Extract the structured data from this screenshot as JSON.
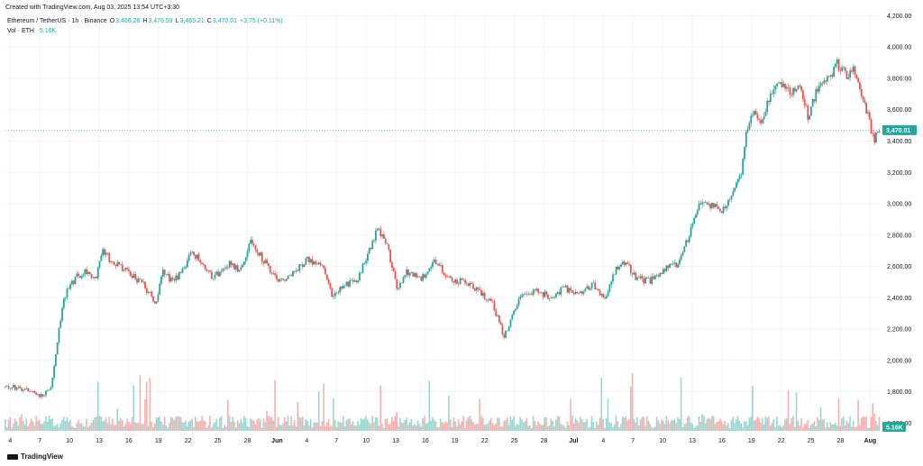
{
  "header": {
    "created_text": "Created with TradingView.com, Aug 03, 2025 13:54 UTC+3:30",
    "symbol_text": "Ethereum / TetherUS · 1h · Binance",
    "ohlc": [
      {
        "key": "O",
        "value": "3,466.26"
      },
      {
        "key": "H",
        "value": "3,476.59"
      },
      {
        "key": "L",
        "value": "3,465.21"
      },
      {
        "key": "C",
        "value": "3,470.01"
      }
    ],
    "change_text": "+3.75 (+0.11%)",
    "vol_label": "Vol · ETH",
    "vol_value": "5.16K"
  },
  "footer": {
    "logo_text": "TradingView"
  },
  "colors": {
    "up": "#26a69a",
    "down": "#ef5350",
    "grid": "#f0f3fa",
    "axis_text": "#131722"
  },
  "chart_data": {
    "type": "candlestick",
    "price_axis": {
      "ticks": [
        1600,
        1800,
        2000,
        2200,
        2400,
        2600,
        2800,
        3000,
        3200,
        3400,
        3600,
        3800,
        4000,
        4200
      ],
      "tick_labels": [
        "1,600.00",
        "1,800.00",
        "2,000.00",
        "2,200.00",
        "2,400.00",
        "2,600.00",
        "2,800.00",
        "3,000.00",
        "3,200.00",
        "3,400.00",
        "3,600.00",
        "3,800.00",
        "4,000.00",
        "4,200.00"
      ],
      "range": [
        1550,
        4220
      ]
    },
    "time_axis": {
      "labels": [
        "4",
        "7",
        "10",
        "13",
        "16",
        "19",
        "22",
        "25",
        "28",
        "Jun",
        "4",
        "7",
        "10",
        "13",
        "16",
        "19",
        "22",
        "25",
        "28",
        "Jul",
        "4",
        "7",
        "10",
        "13",
        "16",
        "19",
        "22",
        "25",
        "28",
        "Aug"
      ],
      "bold_labels": [
        "Jun",
        "Jul",
        "Aug"
      ],
      "range_days": [
        3.5,
        95
      ]
    },
    "last_price": 3470.01,
    "last_price_label": "3,470.01",
    "last_volume_label": "5.16K",
    "trend": [
      {
        "day": 3.5,
        "price": 1830
      },
      {
        "day": 5,
        "price": 1825
      },
      {
        "day": 6.5,
        "price": 1790
      },
      {
        "day": 7.5,
        "price": 1770
      },
      {
        "day": 8.3,
        "price": 1840
      },
      {
        "day": 9,
        "price": 2150
      },
      {
        "day": 9.6,
        "price": 2400
      },
      {
        "day": 10.3,
        "price": 2480
      },
      {
        "day": 11,
        "price": 2540
      },
      {
        "day": 12,
        "price": 2570
      },
      {
        "day": 13,
        "price": 2510
      },
      {
        "day": 13.6,
        "price": 2710
      },
      {
        "day": 14.5,
        "price": 2640
      },
      {
        "day": 15.5,
        "price": 2600
      },
      {
        "day": 16.5,
        "price": 2560
      },
      {
        "day": 18,
        "price": 2480
      },
      {
        "day": 19.2,
        "price": 2360
      },
      {
        "day": 20,
        "price": 2570
      },
      {
        "day": 21,
        "price": 2500
      },
      {
        "day": 22,
        "price": 2560
      },
      {
        "day": 23,
        "price": 2700
      },
      {
        "day": 24,
        "price": 2620
      },
      {
        "day": 25,
        "price": 2540
      },
      {
        "day": 26,
        "price": 2560
      },
      {
        "day": 27,
        "price": 2620
      },
      {
        "day": 28,
        "price": 2580
      },
      {
        "day": 29.2,
        "price": 2760
      },
      {
        "day": 30.5,
        "price": 2640
      },
      {
        "day": 32,
        "price": 2500
      },
      {
        "day": 33.5,
        "price": 2560
      },
      {
        "day": 35,
        "price": 2640
      },
      {
        "day": 36.5,
        "price": 2620
      },
      {
        "day": 37.7,
        "price": 2420
      },
      {
        "day": 39,
        "price": 2480
      },
      {
        "day": 40.5,
        "price": 2530
      },
      {
        "day": 41.5,
        "price": 2700
      },
      {
        "day": 42.5,
        "price": 2840
      },
      {
        "day": 43.5,
        "price": 2720
      },
      {
        "day": 44.5,
        "price": 2460
      },
      {
        "day": 45.5,
        "price": 2560
      },
      {
        "day": 47,
        "price": 2520
      },
      {
        "day": 48.5,
        "price": 2640
      },
      {
        "day": 50,
        "price": 2520
      },
      {
        "day": 51.5,
        "price": 2500
      },
      {
        "day": 53,
        "price": 2450
      },
      {
        "day": 54.5,
        "price": 2360
      },
      {
        "day": 55.7,
        "price": 2150
      },
      {
        "day": 56.5,
        "price": 2280
      },
      {
        "day": 57.5,
        "price": 2420
      },
      {
        "day": 59,
        "price": 2450
      },
      {
        "day": 60.5,
        "price": 2400
      },
      {
        "day": 62,
        "price": 2460
      },
      {
        "day": 63.5,
        "price": 2430
      },
      {
        "day": 65,
        "price": 2490
      },
      {
        "day": 66.2,
        "price": 2400
      },
      {
        "day": 67.5,
        "price": 2600
      },
      {
        "day": 68.5,
        "price": 2620
      },
      {
        "day": 69.5,
        "price": 2520
      },
      {
        "day": 71,
        "price": 2510
      },
      {
        "day": 72.5,
        "price": 2580
      },
      {
        "day": 74,
        "price": 2620
      },
      {
        "day": 75,
        "price": 2790
      },
      {
        "day": 76,
        "price": 2980
      },
      {
        "day": 77,
        "price": 3000
      },
      {
        "day": 78.5,
        "price": 2960
      },
      {
        "day": 79.5,
        "price": 3050
      },
      {
        "day": 80.5,
        "price": 3200
      },
      {
        "day": 81,
        "price": 3450
      },
      {
        "day": 81.8,
        "price": 3600
      },
      {
        "day": 82.5,
        "price": 3520
      },
      {
        "day": 83.5,
        "price": 3680
      },
      {
        "day": 84.5,
        "price": 3800
      },
      {
        "day": 85.5,
        "price": 3700
      },
      {
        "day": 86.5,
        "price": 3750
      },
      {
        "day": 87.5,
        "price": 3560
      },
      {
        "day": 88.5,
        "price": 3740
      },
      {
        "day": 89.5,
        "price": 3780
      },
      {
        "day": 90.5,
        "price": 3900
      },
      {
        "day": 91.5,
        "price": 3820
      },
      {
        "day": 92.5,
        "price": 3860
      },
      {
        "day": 93,
        "price": 3700
      },
      {
        "day": 93.8,
        "price": 3560
      },
      {
        "day": 94.4,
        "price": 3400
      },
      {
        "day": 95,
        "price": 3470
      }
    ]
  }
}
